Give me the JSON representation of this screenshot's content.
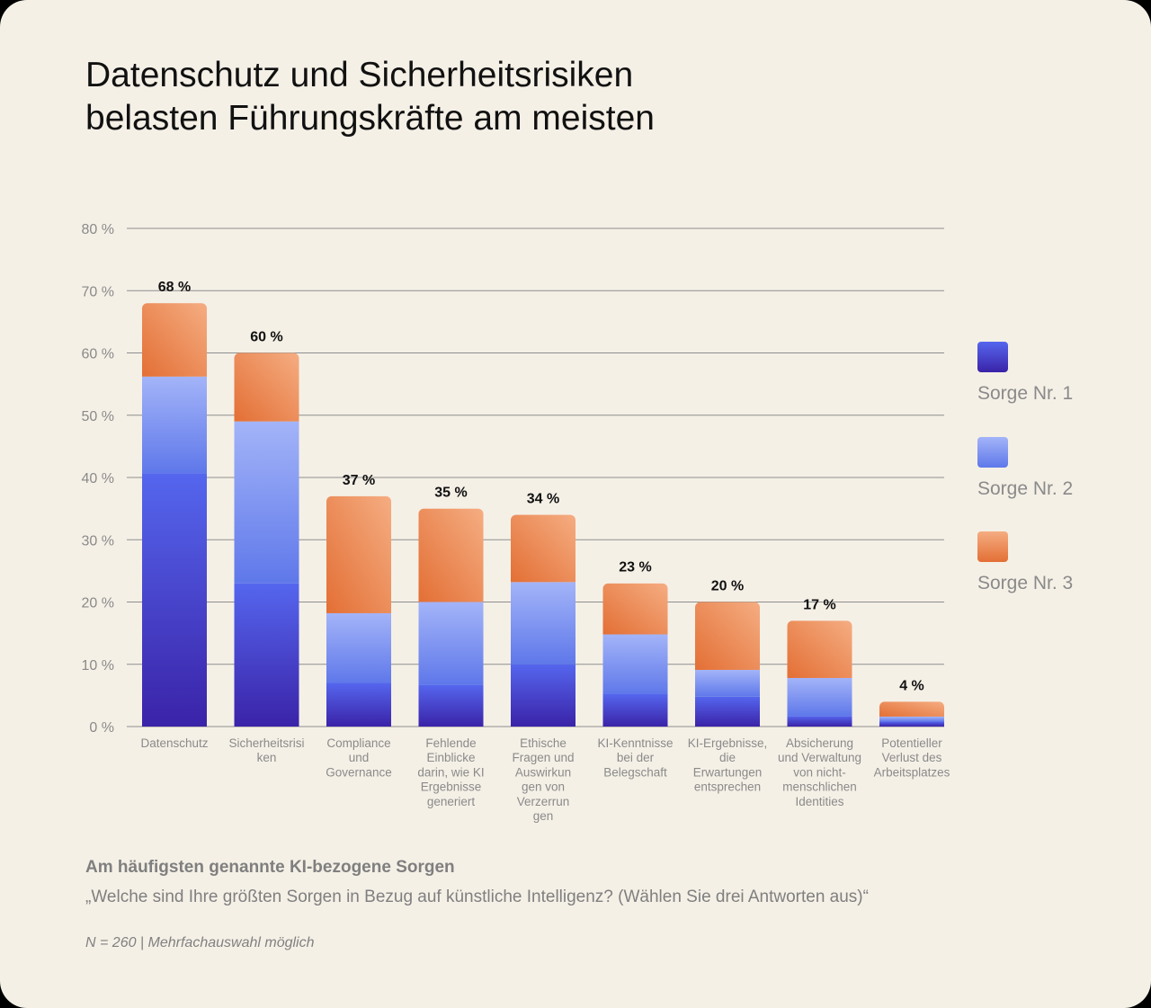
{
  "title_lines": [
    "Datenschutz und Sicherheitsrisiken",
    "belasten Führungskräfte am meisten"
  ],
  "legend": [
    {
      "label": "Sorge Nr. 1",
      "color_top": "#5566ee",
      "color_bottom": "#3a23a8"
    },
    {
      "label": "Sorge Nr. 2",
      "color_top": "#a3b4f8",
      "color_bottom": "#5f78ea"
    },
    {
      "label": "Sorge Nr. 3",
      "color_top": "#f5ad82",
      "color_bottom": "#e36f35"
    }
  ],
  "footer": {
    "subtitle": "Am häufigsten genannte KI-bezogene Sorgen",
    "question": "„Welche sind Ihre größten Sorgen in Bezug auf künstliche Intelligenz? (Wählen Sie drei Antworten aus)“",
    "note": "N = 260 | Mehrfachauswahl möglich"
  },
  "chart_data": {
    "type": "bar",
    "stacked": true,
    "ylim": [
      0,
      80
    ],
    "yticks": [
      0,
      10,
      20,
      30,
      40,
      50,
      60,
      70,
      80
    ],
    "ytick_labels": [
      "0 %",
      "10 %",
      "20 %",
      "30 %",
      "40 %",
      "50 %",
      "60 %",
      "70 %",
      "80 %"
    ],
    "grid": true,
    "legend_position": "right",
    "categories": [
      [
        "Datenschutz"
      ],
      [
        "Sicherheitsrisi",
        "ken"
      ],
      [
        "Compliance",
        "und",
        "Governance"
      ],
      [
        "Fehlende",
        "Einblicke",
        "darin, wie KI",
        "Ergebnisse",
        "generiert"
      ],
      [
        "Ethische",
        "Fragen und",
        "Auswirkun",
        "gen von",
        "Verzerrun",
        "gen"
      ],
      [
        "KI-Kenntnisse",
        "bei der",
        "Belegschaft"
      ],
      [
        "KI-Ergebnisse,",
        "die",
        "Erwartungen",
        "entsprechen"
      ],
      [
        "Absicherung",
        "und Verwaltung",
        "von nicht-",
        "menschlichen",
        "Identities"
      ],
      [
        "Potentieller",
        "Verlust des",
        "Arbeitsplatzes"
      ]
    ],
    "series": [
      {
        "name": "Sorge Nr. 1",
        "values": [
          40.7,
          23,
          7,
          6.7,
          10,
          5.2,
          4.8,
          1.7,
          0.8
        ]
      },
      {
        "name": "Sorge Nr. 2",
        "values": [
          15.5,
          26,
          11.2,
          13.3,
          13.2,
          9.6,
          4.3,
          6.1,
          0.8
        ]
      },
      {
        "name": "Sorge Nr. 3",
        "values": [
          11.8,
          11,
          18.8,
          15,
          10.8,
          8.2,
          10.9,
          9.2,
          2.4
        ]
      }
    ],
    "totals": [
      68,
      60,
      37,
      35,
      34,
      23,
      20,
      17,
      4
    ],
    "total_labels": [
      "68 %",
      "60 %",
      "37 %",
      "35 %",
      "34 %",
      "23 %",
      "20 %",
      "17 %",
      "4 %"
    ]
  }
}
